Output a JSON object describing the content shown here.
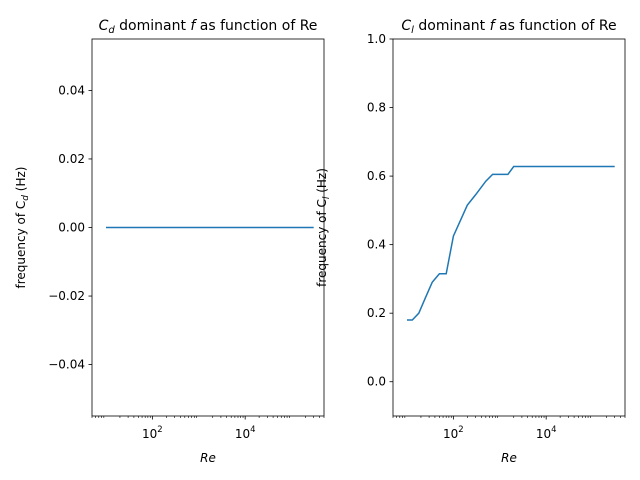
{
  "chart_data": [
    {
      "type": "line",
      "title": {
        "pre": "C",
        "sub": "d",
        "mid": " dominant ",
        "ital": "f",
        "post": " as function of Re"
      },
      "xlabel": "Re",
      "ylabel": {
        "pre": "frequency of C",
        "sub": "d",
        "post": " (Hz)"
      },
      "xscale": "log",
      "xlim": [
        5,
        500000
      ],
      "ylim": [
        -0.055,
        0.055
      ],
      "xticks": [
        {
          "v": 100,
          "label": "10",
          "exp": "2"
        },
        {
          "v": 10000,
          "label": "10",
          "exp": "4"
        }
      ],
      "yticks": [
        {
          "v": -0.04,
          "label": "−0.04"
        },
        {
          "v": -0.02,
          "label": "−0.02"
        },
        {
          "v": 0,
          "label": "0.00"
        },
        {
          "v": 0.02,
          "label": "0.02"
        },
        {
          "v": 0.04,
          "label": "0.04"
        }
      ],
      "series": [
        {
          "color": "#1f77b4",
          "x": [
            10,
            300000
          ],
          "y": [
            0,
            0
          ]
        }
      ]
    },
    {
      "type": "line",
      "title": {
        "pre": "C",
        "sub": "l",
        "mid": " dominant ",
        "ital": "f",
        "post": " as function of Re"
      },
      "xlabel": "Re",
      "ylabel": {
        "pre": "frequency of C",
        "sub": "l",
        "post": " (Hz)"
      },
      "xscale": "log",
      "xlim": [
        5,
        500000
      ],
      "ylim": [
        -0.1,
        1.0
      ],
      "xticks": [
        {
          "v": 100,
          "label": "10",
          "exp": "2"
        },
        {
          "v": 10000,
          "label": "10",
          "exp": "4"
        }
      ],
      "yticks": [
        {
          "v": 0,
          "label": "0.0"
        },
        {
          "v": 0.2,
          "label": "0.2"
        },
        {
          "v": 0.4,
          "label": "0.4"
        },
        {
          "v": 0.6,
          "label": "0.6"
        },
        {
          "v": 0.8,
          "label": "0.8"
        },
        {
          "v": 1.0,
          "label": "1.0"
        }
      ],
      "series": [
        {
          "color": "#1f77b4",
          "x": [
            10,
            13,
            18,
            25,
            35,
            50,
            70,
            100,
            200,
            300,
            500,
            700,
            1000,
            1500,
            2000,
            5000,
            10000,
            50000,
            300000
          ],
          "y": [
            0.18,
            0.18,
            0.2,
            0.245,
            0.29,
            0.315,
            0.315,
            0.425,
            0.515,
            0.545,
            0.585,
            0.605,
            0.605,
            0.605,
            0.628,
            0.628,
            0.628,
            0.628,
            0.628
          ]
        }
      ]
    }
  ]
}
